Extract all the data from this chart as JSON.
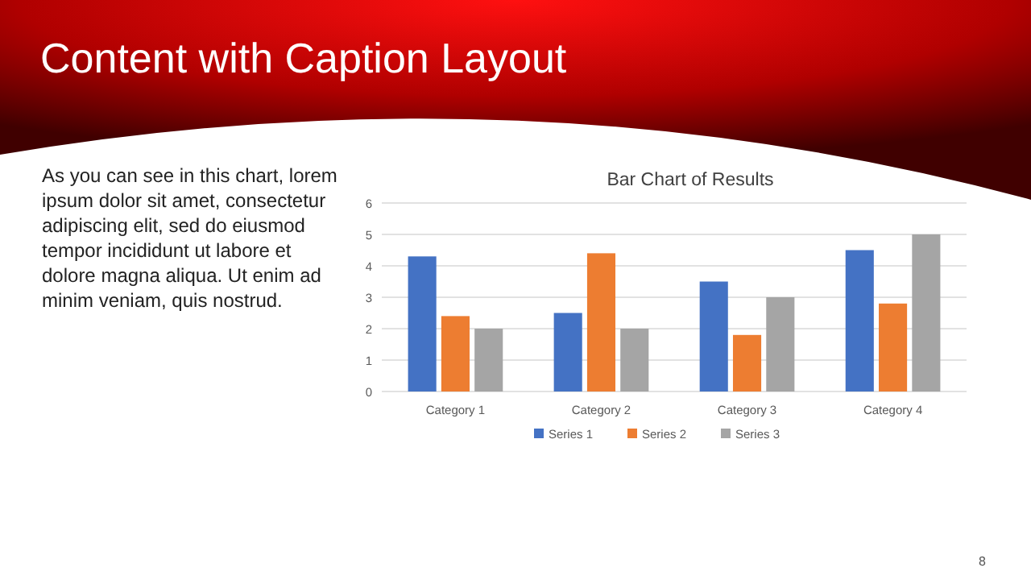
{
  "chart_data": {
    "type": "bar",
    "title": "Bar Chart of Results",
    "categories": [
      "Category 1",
      "Category 2",
      "Category 3",
      "Category 4"
    ],
    "series": [
      {
        "name": "Series 1",
        "color": "#4472c4",
        "values": [
          4.3,
          2.5,
          3.5,
          4.5
        ]
      },
      {
        "name": "Series 2",
        "color": "#ed7d31",
        "values": [
          2.4,
          4.4,
          1.8,
          2.8
        ]
      },
      {
        "name": "Series 3",
        "color": "#a5a5a5",
        "values": [
          2,
          2,
          3,
          5
        ]
      }
    ],
    "ylim": [
      0,
      6
    ],
    "yticks": [
      0,
      1,
      2,
      3,
      4,
      5,
      6
    ],
    "grid": "y",
    "legend": "bottom",
    "annotations": [
      "Content with Caption Layout",
      "As you can see in this chart, lorem ipsum dolor sit amet, consectetur adipiscing elit, sed do eiusmod tempor incididunt ut labore et dolore magna aliqua. Ut enim ad minim veniam, quis nostrud.",
      "8"
    ]
  }
}
